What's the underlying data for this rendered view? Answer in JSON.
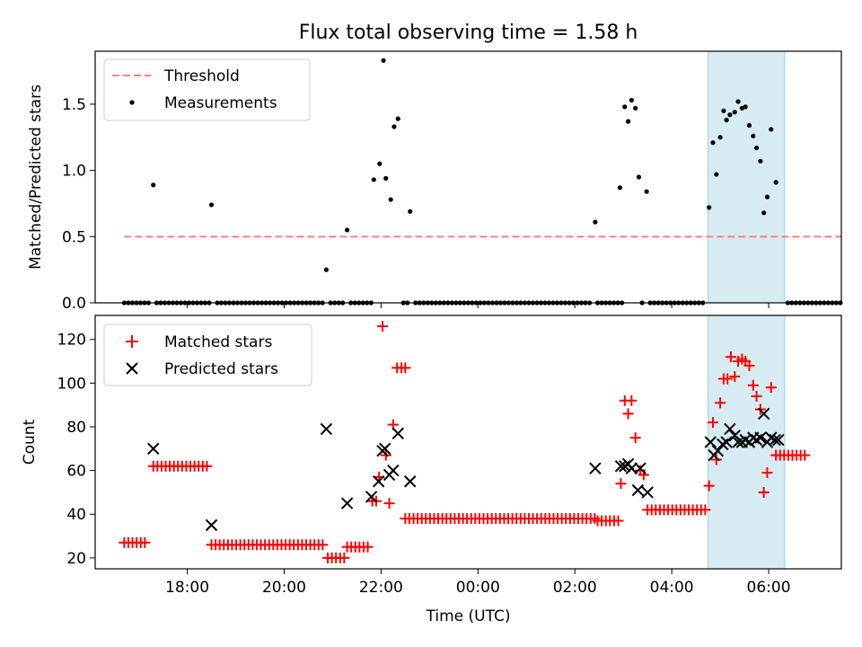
{
  "title": "Flux total observing time = 1.58 h",
  "x_axis": {
    "label": "Time (UTC)",
    "ticks": [
      {
        "hour": 18,
        "label": "18:00"
      },
      {
        "hour": 20,
        "label": "20:00"
      },
      {
        "hour": 22,
        "label": "22:00"
      },
      {
        "hour": 24,
        "label": "00:00"
      },
      {
        "hour": 26,
        "label": "02:00"
      },
      {
        "hour": 28,
        "label": "04:00"
      },
      {
        "hour": 30,
        "label": "06:00"
      }
    ],
    "range_hours": [
      16.1,
      31.5
    ]
  },
  "shaded_span_hours": [
    28.75,
    30.33
  ],
  "colors": {
    "threshold": "#ff7f7f",
    "measurement": "#000000",
    "matched": "#ff0000",
    "predicted": "#000000",
    "shade": "#add8e6"
  },
  "chart_data": [
    {
      "type": "scatter",
      "ylabel": "Matched/Predicted stars",
      "ylim": [
        0,
        1.9
      ],
      "yticks": [
        {
          "value": 0,
          "label": "0.0"
        },
        {
          "value": 0.5,
          "label": "0.5"
        },
        {
          "value": 1.0,
          "label": "1.0"
        },
        {
          "value": 1.5,
          "label": "1.5"
        }
      ],
      "legend": {
        "position": "upper-left",
        "entries": [
          "Threshold",
          "Measurements"
        ]
      },
      "threshold": {
        "name": "Threshold",
        "value": 0.5,
        "x_range": [
          16.7,
          31.5
        ]
      },
      "measurements": {
        "name": "Measurements",
        "zero_x_start": 16.7,
        "zero_x_end": 31.5,
        "zero_step": 0.0835,
        "points": [
          [
            17.3,
            0.89
          ],
          [
            18.5,
            0.74
          ],
          [
            20.87,
            0.25
          ],
          [
            21.3,
            0.55
          ],
          [
            21.85,
            0.93
          ],
          [
            21.97,
            1.05
          ],
          [
            22.05,
            1.83
          ],
          [
            22.1,
            0.94
          ],
          [
            22.2,
            0.78
          ],
          [
            22.27,
            1.33
          ],
          [
            22.35,
            1.39
          ],
          [
            22.6,
            0.69
          ],
          [
            26.42,
            0.61
          ],
          [
            26.93,
            0.87
          ],
          [
            27.03,
            1.48
          ],
          [
            27.1,
            1.37
          ],
          [
            27.17,
            1.53
          ],
          [
            27.25,
            1.47
          ],
          [
            27.32,
            0.95
          ],
          [
            27.48,
            0.84
          ],
          [
            28.77,
            0.72
          ],
          [
            28.85,
            1.21
          ],
          [
            28.92,
            0.97
          ],
          [
            29.0,
            1.25
          ],
          [
            29.07,
            1.45
          ],
          [
            29.13,
            1.38
          ],
          [
            29.2,
            1.42
          ],
          [
            29.3,
            1.44
          ],
          [
            29.37,
            1.52
          ],
          [
            29.45,
            1.47
          ],
          [
            29.52,
            1.48
          ],
          [
            29.6,
            1.34
          ],
          [
            29.68,
            1.26
          ],
          [
            29.75,
            1.17
          ],
          [
            29.83,
            1.07
          ],
          [
            29.9,
            0.68
          ],
          [
            29.97,
            0.8
          ],
          [
            30.05,
            1.31
          ],
          [
            30.15,
            0.91
          ]
        ]
      }
    },
    {
      "type": "scatter",
      "xlabel": "Time (UTC)",
      "ylabel": "Count",
      "ylim": [
        15,
        131
      ],
      "yticks": [
        {
          "value": 20,
          "label": "20"
        },
        {
          "value": 40,
          "label": "40"
        },
        {
          "value": 60,
          "label": "60"
        },
        {
          "value": 80,
          "label": "80"
        },
        {
          "value": 100,
          "label": "100"
        },
        {
          "value": 120,
          "label": "120"
        }
      ],
      "legend": {
        "position": "upper-left",
        "entries": [
          "Matched stars",
          "Predicted stars"
        ]
      },
      "matched": {
        "name": "Matched stars",
        "runs": [
          {
            "x0": 16.7,
            "x1": 17.2,
            "y": 27
          },
          {
            "x0": 17.3,
            "x1": 18.45,
            "y": 62
          },
          {
            "x0": 18.5,
            "x1": 20.85,
            "y": 26
          },
          {
            "x0": 20.9,
            "x1": 21.25,
            "y": 20
          },
          {
            "x0": 21.3,
            "x1": 21.75,
            "y": 25
          },
          {
            "x0": 22.5,
            "x1": 26.42,
            "y": 38
          },
          {
            "x0": 26.47,
            "x1": 26.92,
            "y": 37
          },
          {
            "x0": 27.5,
            "x1": 28.72,
            "y": 42
          },
          {
            "x0": 30.15,
            "x1": 30.8,
            "y": 67
          }
        ],
        "step": 0.085,
        "points": [
          [
            21.82,
            46
          ],
          [
            21.9,
            46
          ],
          [
            21.96,
            57
          ],
          [
            22.03,
            126
          ],
          [
            22.1,
            67
          ],
          [
            22.17,
            45
          ],
          [
            22.25,
            81
          ],
          [
            22.33,
            107
          ],
          [
            22.42,
            107
          ],
          [
            22.5,
            107
          ],
          [
            26.95,
            54
          ],
          [
            27.03,
            92
          ],
          [
            27.1,
            86
          ],
          [
            27.17,
            92
          ],
          [
            27.25,
            75
          ],
          [
            27.35,
            60
          ],
          [
            27.42,
            58
          ],
          [
            28.77,
            53
          ],
          [
            28.85,
            82
          ],
          [
            28.92,
            65
          ],
          [
            29.0,
            91
          ],
          [
            29.07,
            102
          ],
          [
            29.15,
            102
          ],
          [
            29.22,
            112
          ],
          [
            29.3,
            103
          ],
          [
            29.37,
            110
          ],
          [
            29.45,
            111
          ],
          [
            29.52,
            110
          ],
          [
            29.6,
            108
          ],
          [
            29.68,
            99
          ],
          [
            29.75,
            94
          ],
          [
            29.83,
            88
          ],
          [
            29.9,
            50
          ],
          [
            29.97,
            59
          ],
          [
            30.05,
            98
          ]
        ]
      },
      "predicted": {
        "name": "Predicted stars",
        "points": [
          [
            17.3,
            70
          ],
          [
            18.5,
            35
          ],
          [
            20.87,
            79
          ],
          [
            21.3,
            45
          ],
          [
            21.8,
            48
          ],
          [
            21.95,
            55
          ],
          [
            22.03,
            69
          ],
          [
            22.08,
            70
          ],
          [
            22.17,
            58
          ],
          [
            22.25,
            60
          ],
          [
            22.35,
            77
          ],
          [
            22.6,
            55
          ],
          [
            26.42,
            61
          ],
          [
            26.95,
            62
          ],
          [
            27.03,
            62
          ],
          [
            27.1,
            63
          ],
          [
            27.17,
            61
          ],
          [
            27.3,
            51
          ],
          [
            27.35,
            61
          ],
          [
            27.5,
            50
          ],
          [
            28.8,
            73
          ],
          [
            28.87,
            67
          ],
          [
            28.95,
            69
          ],
          [
            29.05,
            72
          ],
          [
            29.13,
            73
          ],
          [
            29.2,
            79
          ],
          [
            29.3,
            76
          ],
          [
            29.37,
            73
          ],
          [
            29.45,
            73
          ],
          [
            29.52,
            74
          ],
          [
            29.6,
            73
          ],
          [
            29.68,
            75
          ],
          [
            29.75,
            74
          ],
          [
            29.83,
            75
          ],
          [
            29.9,
            86
          ],
          [
            29.97,
            73
          ],
          [
            30.05,
            75
          ],
          [
            30.13,
            74
          ],
          [
            30.2,
            74
          ]
        ]
      }
    }
  ]
}
